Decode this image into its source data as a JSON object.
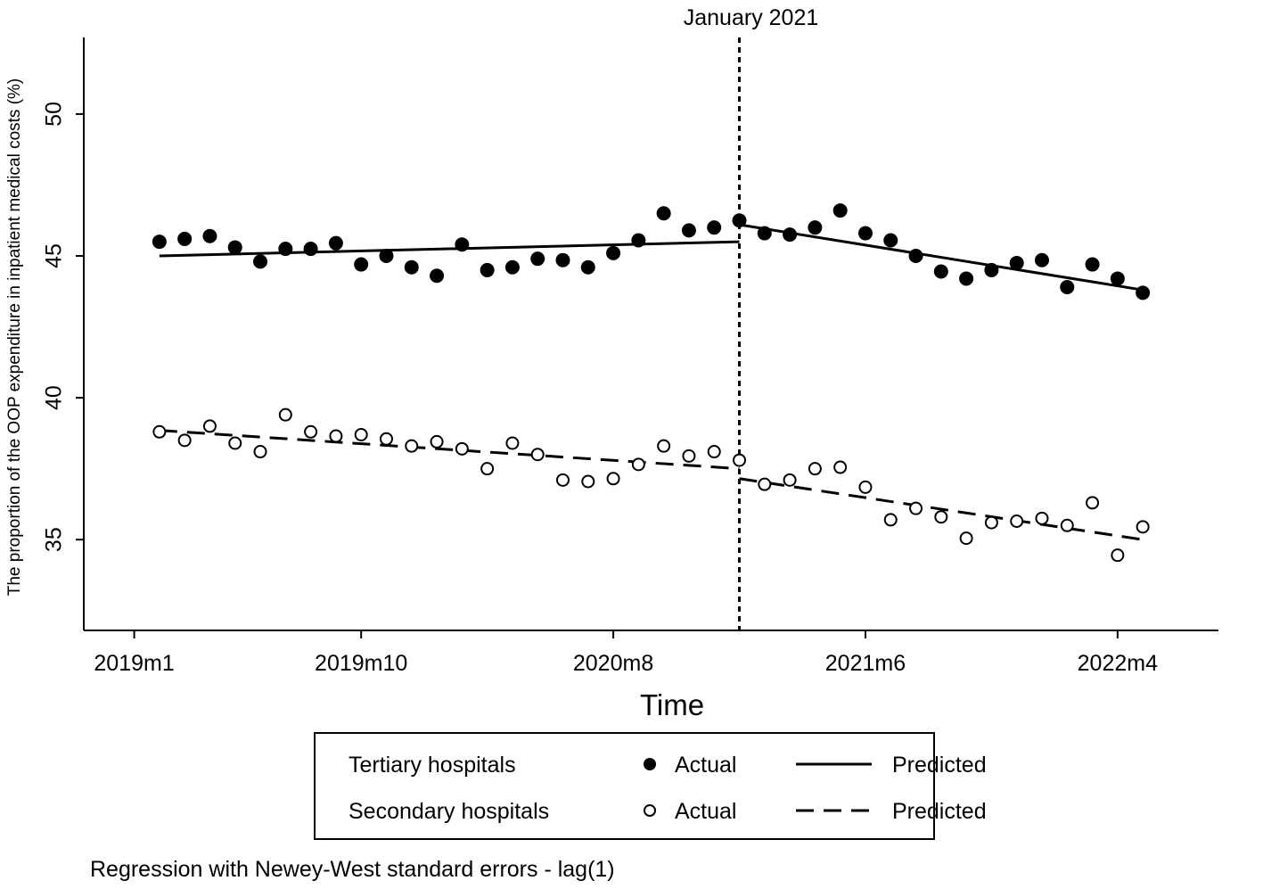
{
  "chart_data": {
    "type": "scatter",
    "title": "",
    "xlabel": "Time",
    "ylabel": "The proportion of the OOP expenditure in inpatient medical costs (%)",
    "x_ticks": [
      "2019m1",
      "2019m10",
      "2020m8",
      "2021m6",
      "2022m4"
    ],
    "x_tick_positions": [
      1,
      10,
      20,
      30,
      40
    ],
    "xlim": [
      -1,
      44
    ],
    "y_ticks": [
      35,
      40,
      45,
      50
    ],
    "ylim": [
      31.8,
      52.7
    ],
    "intervention": {
      "x": 25,
      "label": "January 2021",
      "style": "dotted"
    },
    "series": [
      {
        "name": "Tertiary hospitals",
        "kind": "actual",
        "marker": "filled-circle",
        "x": [
          2,
          3,
          4,
          5,
          6,
          7,
          8,
          9,
          10,
          11,
          12,
          13,
          14,
          15,
          16,
          17,
          18,
          19,
          20,
          21,
          22,
          23,
          24,
          25,
          26,
          27,
          28,
          29,
          30,
          31,
          32,
          33,
          34,
          35,
          36,
          37,
          38,
          39,
          40,
          41
        ],
        "values": [
          45.5,
          45.6,
          45.7,
          45.3,
          44.8,
          45.25,
          45.25,
          45.45,
          44.7,
          45.0,
          44.6,
          44.3,
          45.4,
          44.5,
          44.6,
          44.9,
          44.85,
          44.6,
          45.1,
          45.55,
          46.5,
          45.9,
          46.0,
          46.25,
          45.8,
          45.75,
          46.0,
          46.6,
          45.8,
          45.55,
          45.0,
          44.45,
          44.2,
          44.5,
          44.75,
          44.85,
          43.9,
          44.7,
          44.2,
          43.7
        ]
      },
      {
        "name": "Tertiary hospitals",
        "kind": "predicted",
        "line": "solid",
        "segments": [
          {
            "x": [
              2,
              25
            ],
            "values": [
              45.0,
              45.5
            ]
          },
          {
            "x": [
              25,
              41
            ],
            "values": [
              46.1,
              43.8
            ]
          }
        ]
      },
      {
        "name": "Secondary hospitals",
        "kind": "actual",
        "marker": "hollow-circle",
        "x": [
          2,
          3,
          4,
          5,
          6,
          7,
          8,
          9,
          10,
          11,
          12,
          13,
          14,
          15,
          16,
          17,
          18,
          19,
          20,
          21,
          22,
          23,
          24,
          25,
          26,
          27,
          28,
          29,
          30,
          31,
          32,
          33,
          34,
          35,
          36,
          37,
          38,
          39,
          40,
          41
        ],
        "values": [
          38.8,
          38.5,
          39.0,
          38.4,
          38.1,
          39.4,
          38.8,
          38.65,
          38.7,
          38.55,
          38.3,
          38.45,
          38.2,
          37.5,
          38.4,
          38.0,
          37.1,
          37.05,
          37.15,
          37.65,
          38.3,
          37.95,
          38.1,
          37.8,
          36.95,
          37.1,
          37.5,
          37.55,
          36.85,
          35.7,
          36.1,
          35.8,
          35.05,
          35.6,
          35.65,
          35.75,
          35.5,
          36.3,
          34.45,
          35.45
        ]
      },
      {
        "name": "Secondary hospitals",
        "kind": "predicted",
        "line": "dashed",
        "segments": [
          {
            "x": [
              2,
              25
            ],
            "values": [
              38.85,
              37.5
            ]
          },
          {
            "x": [
              25,
              41
            ],
            "values": [
              37.15,
              35.0
            ]
          }
        ]
      }
    ],
    "legend": {
      "position": "bottom",
      "rows": [
        {
          "group": "Tertiary hospitals",
          "actual_label": "Actual",
          "predicted_label": "Predicted"
        },
        {
          "group": "Secondary hospitals",
          "actual_label": "Actual",
          "predicted_label": "Predicted"
        }
      ]
    },
    "note": "Regression with Newey-West standard errors - lag(1)"
  }
}
